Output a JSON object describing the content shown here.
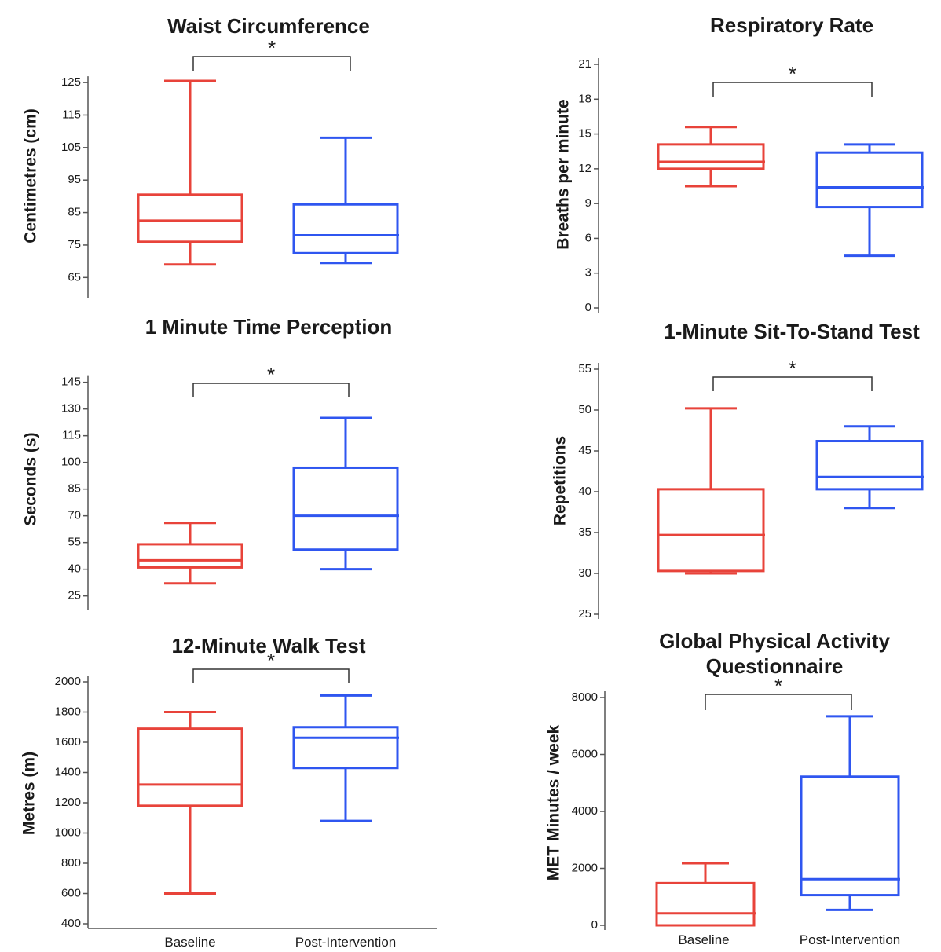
{
  "chart_data": [
    {
      "type": "box",
      "title": [
        "Waist Circumference"
      ],
      "ylabel": "Centimetres (cm)",
      "ylim": [
        60,
        133
      ],
      "yticks": [
        65,
        75,
        85,
        95,
        105,
        115,
        125
      ],
      "categories": [
        "Baseline",
        "Post-Intervention"
      ],
      "boxes": [
        {
          "min": 69,
          "q1": 76,
          "median": 82.5,
          "q3": 90.5,
          "max": 125.5,
          "color": "#e8433a"
        },
        {
          "min": 69.5,
          "q1": 72.5,
          "median": 78,
          "q3": 87.5,
          "max": 108,
          "color": "#2f56f0"
        }
      ],
      "significance": "*"
    },
    {
      "type": "box",
      "title": [
        "Respiratory Rate"
      ],
      "ylabel": "Breaths per minute",
      "ylim": [
        0,
        21
      ],
      "yticks": [
        0,
        3,
        6,
        9,
        12,
        15,
        18,
        21
      ],
      "categories": [
        "Baseline",
        "Post-Intervention"
      ],
      "boxes": [
        {
          "min": 10.5,
          "q1": 12,
          "median": 12.6,
          "q3": 14.1,
          "max": 15.6,
          "color": "#e8433a"
        },
        {
          "min": 4.5,
          "q1": 8.7,
          "median": 10.4,
          "q3": 13.4,
          "max": 14.1,
          "color": "#2f56f0"
        }
      ],
      "significance": "*"
    },
    {
      "type": "box",
      "title": [
        "1 Minute Time Perception"
      ],
      "ylabel": "Seconds (s)",
      "ylim": [
        20,
        155
      ],
      "yticks": [
        25,
        40,
        55,
        70,
        85,
        100,
        115,
        130,
        145
      ],
      "categories": [
        "Baseline",
        "Post-Intervention"
      ],
      "boxes": [
        {
          "min": 32,
          "q1": 41,
          "median": 45,
          "q3": 54,
          "max": 66,
          "color": "#e8433a"
        },
        {
          "min": 40,
          "q1": 51,
          "median": 70,
          "q3": 97,
          "max": 125,
          "color": "#2f56f0"
        }
      ],
      "significance": "*"
    },
    {
      "type": "box",
      "title": [
        "1-Minute Sit-To-Stand Test"
      ],
      "ylabel": "Repetitions",
      "ylim": [
        25,
        55
      ],
      "yticks": [
        25,
        30,
        35,
        40,
        45,
        50,
        55
      ],
      "categories": [
        "Baseline",
        "Post-Intervention"
      ],
      "boxes": [
        {
          "min": 30,
          "q1": 30.3,
          "median": 34.7,
          "q3": 40.3,
          "max": 50.2,
          "color": "#e8433a"
        },
        {
          "min": 38,
          "q1": 40.3,
          "median": 41.8,
          "q3": 46.2,
          "max": 48,
          "color": "#2f56f0"
        }
      ],
      "significance": "*"
    },
    {
      "type": "box",
      "title": [
        "12-Minute Walk Test"
      ],
      "ylabel": "Metres (m)",
      "ylim": [
        400,
        2000
      ],
      "yticks": [
        400,
        600,
        800,
        1000,
        1200,
        1400,
        1600,
        1800,
        2000
      ],
      "categories": [
        "Baseline",
        "Post-Intervention"
      ],
      "boxes": [
        {
          "min": 600,
          "q1": 1180,
          "median": 1320,
          "q3": 1690,
          "max": 1800,
          "color": "#e8433a"
        },
        {
          "min": 1080,
          "q1": 1430,
          "median": 1630,
          "q3": 1700,
          "max": 1910,
          "color": "#2f56f0"
        }
      ],
      "significance": "*"
    },
    {
      "type": "box",
      "title": [
        "Global Physical Activity",
        "Questionnaire"
      ],
      "ylabel": "MET Minutes / week",
      "ylim": [
        0,
        8000
      ],
      "yticks": [
        0,
        2000,
        4000,
        6000,
        8000
      ],
      "categories": [
        "Baseline",
        "Post-Intervention"
      ],
      "boxes": [
        {
          "min": 0,
          "q1": 0,
          "median": 420,
          "q3": 1480,
          "max": 2180,
          "color": "#e8433a"
        },
        {
          "min": 540,
          "q1": 1060,
          "median": 1620,
          "q3": 5220,
          "max": 7340,
          "color": "#2f56f0"
        }
      ],
      "significance": "*"
    }
  ]
}
